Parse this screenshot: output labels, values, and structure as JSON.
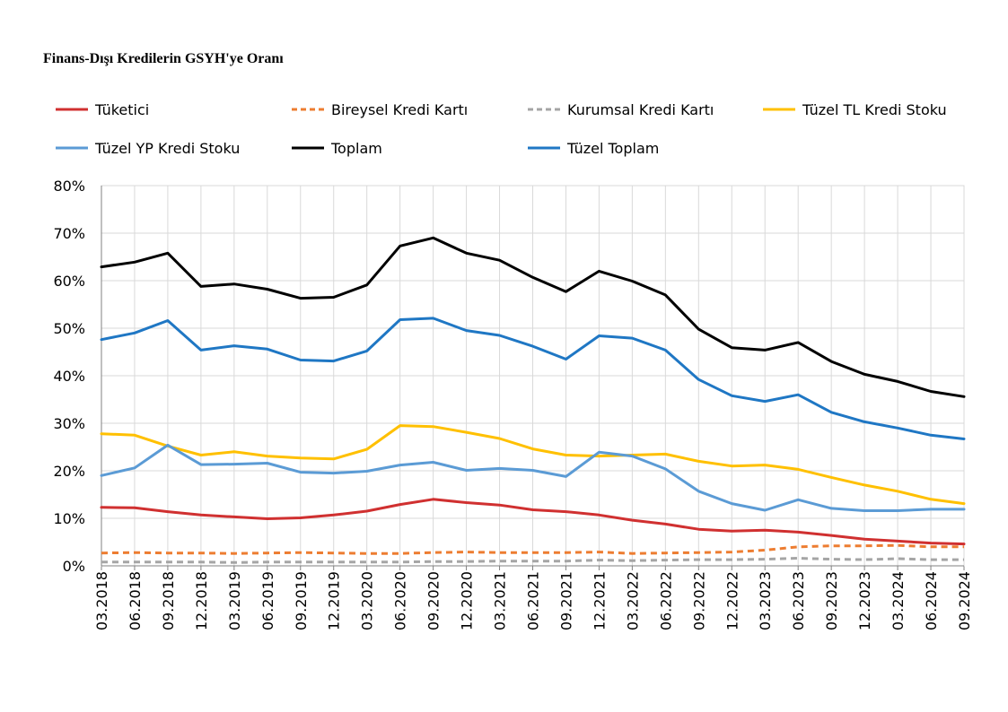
{
  "chart_data": {
    "type": "line",
    "title": "Finans-Dışı Kredilerin GSYH'ye Oranı",
    "xlabel": "",
    "ylabel": "",
    "ylim": [
      0,
      80
    ],
    "y_ticks": [
      "0%",
      "10%",
      "20%",
      "30%",
      "40%",
      "50%",
      "60%",
      "70%",
      "80%"
    ],
    "grid": true,
    "legend_position": "top",
    "categories": [
      "03.2018",
      "06.2018",
      "09.2018",
      "12.2018",
      "03.2019",
      "06.2019",
      "09.2019",
      "12.2019",
      "03.2020",
      "06.2020",
      "09.2020",
      "12.2020",
      "03.2021",
      "06.2021",
      "09.2021",
      "12.2021",
      "03.2022",
      "06.2022",
      "09.2022",
      "12.2022",
      "03.2023",
      "06.2023",
      "09.2023",
      "12.2023",
      "03.2024",
      "06.2024",
      "09.2024"
    ],
    "series": [
      {
        "name": "Tüketici",
        "color": "#d03030",
        "dash": "solid",
        "values": [
          12.3,
          12.2,
          11.4,
          10.7,
          10.3,
          9.9,
          10.1,
          10.7,
          11.5,
          12.9,
          14.0,
          13.3,
          12.8,
          11.8,
          11.4,
          10.7,
          9.6,
          8.8,
          7.7,
          7.3,
          7.5,
          7.1,
          6.4,
          5.6,
          5.2,
          4.8,
          4.6
        ]
      },
      {
        "name": "Bireysel Kredi Kartı",
        "color": "#ed7d31",
        "dash": "dashed",
        "values": [
          2.7,
          2.8,
          2.7,
          2.7,
          2.6,
          2.7,
          2.8,
          2.7,
          2.6,
          2.6,
          2.8,
          2.9,
          2.8,
          2.8,
          2.8,
          2.9,
          2.6,
          2.7,
          2.8,
          2.9,
          3.3,
          4.0,
          4.2,
          4.2,
          4.3,
          4.0,
          4.0
        ]
      },
      {
        "name": "Kurumsal Kredi Kartı",
        "color": "#a5a5a5",
        "dash": "dashed",
        "values": [
          0.8,
          0.8,
          0.8,
          0.8,
          0.7,
          0.8,
          0.8,
          0.8,
          0.8,
          0.8,
          0.9,
          0.9,
          1.0,
          1.0,
          1.0,
          1.2,
          1.1,
          1.2,
          1.3,
          1.3,
          1.4,
          1.6,
          1.4,
          1.3,
          1.5,
          1.3,
          1.3
        ]
      },
      {
        "name": "Tüzel TL Kredi Stoku",
        "color": "#ffc000",
        "dash": "solid",
        "values": [
          27.8,
          27.5,
          25.2,
          23.3,
          24.0,
          23.1,
          22.7,
          22.5,
          24.5,
          29.5,
          29.3,
          28.1,
          26.8,
          24.6,
          23.3,
          23.1,
          23.3,
          23.5,
          22.0,
          21.0,
          21.2,
          20.3,
          18.6,
          17.0,
          15.7,
          14.0,
          13.1
        ]
      },
      {
        "name": "Tüzel YP Kredi Stoku",
        "color": "#5b9bd5",
        "dash": "solid",
        "values": [
          19.0,
          20.6,
          25.4,
          21.3,
          21.4,
          21.6,
          19.7,
          19.5,
          19.9,
          21.2,
          21.8,
          20.1,
          20.5,
          20.1,
          18.8,
          23.9,
          23.1,
          20.4,
          15.7,
          13.1,
          11.7,
          13.9,
          12.1,
          11.6,
          11.6,
          11.9,
          11.9
        ]
      },
      {
        "name": "Toplam",
        "color": "#000000",
        "dash": "solid",
        "values": [
          62.9,
          63.9,
          65.8,
          58.8,
          59.3,
          58.2,
          56.3,
          56.5,
          59.1,
          67.3,
          69.0,
          65.8,
          64.3,
          60.7,
          57.7,
          62.0,
          59.9,
          57.0,
          49.8,
          45.9,
          45.4,
          47.0,
          43.0,
          40.3,
          38.8,
          36.7,
          35.6
        ]
      },
      {
        "name": "Tüzel Toplam",
        "color": "#1f77c4",
        "dash": "solid",
        "values": [
          47.6,
          49.0,
          51.6,
          45.4,
          46.3,
          45.6,
          43.3,
          43.1,
          45.2,
          51.8,
          52.1,
          49.5,
          48.5,
          46.2,
          43.5,
          48.4,
          47.9,
          45.4,
          39.2,
          35.8,
          34.6,
          36.0,
          32.3,
          30.3,
          29.0,
          27.5,
          26.7
        ]
      }
    ]
  }
}
